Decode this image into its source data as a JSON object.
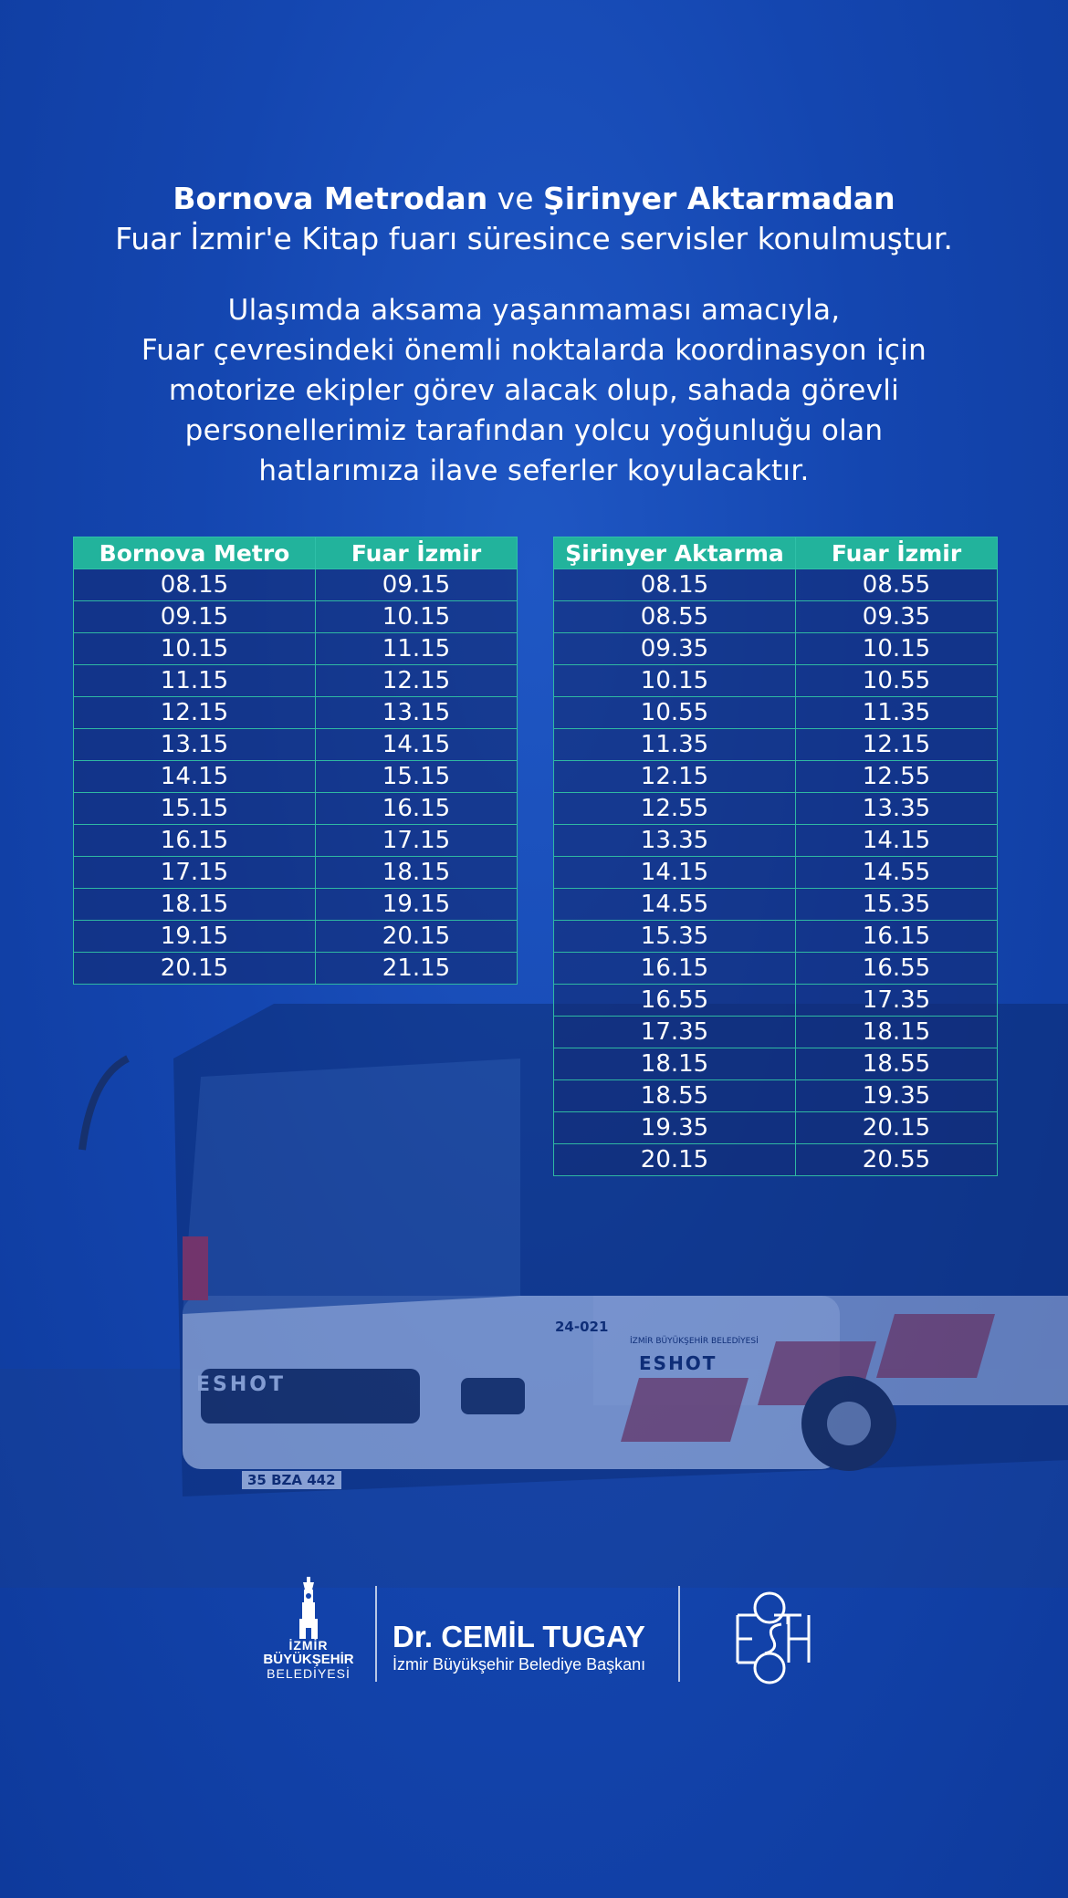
{
  "intro": {
    "line1_bold_a": "Bornova Metrodan",
    "line1_mid": " ve ",
    "line1_bold_b": "Şirinyer Aktarmadan",
    "line2": "Fuar İzmir'e Kitap fuarı süresince servisler konulmuştur.",
    "paragraph": [
      "Ulaşımda aksama yaşanmaması amacıyla,",
      "Fuar çevresindeki önemli noktalarda koordinasyon için",
      "motorize ekipler görev alacak olup, sahada görevli",
      "personellerimiz tarafından yolcu yoğunluğu olan",
      "hatlarımıza ilave seferler koyulacaktır."
    ]
  },
  "tables": {
    "bornova": {
      "headers": [
        "Bornova Metro",
        "Fuar İzmir"
      ],
      "rows": [
        [
          "08.15",
          "09.15"
        ],
        [
          "09.15",
          "10.15"
        ],
        [
          "10.15",
          "11.15"
        ],
        [
          "11.15",
          "12.15"
        ],
        [
          "12.15",
          "13.15"
        ],
        [
          "13.15",
          "14.15"
        ],
        [
          "14.15",
          "15.15"
        ],
        [
          "15.15",
          "16.15"
        ],
        [
          "16.15",
          "17.15"
        ],
        [
          "17.15",
          "18.15"
        ],
        [
          "18.15",
          "19.15"
        ],
        [
          "19.15",
          "20.15"
        ],
        [
          "20.15",
          "21.15"
        ]
      ]
    },
    "sirinyer": {
      "headers": [
        "Şirinyer Aktarma",
        "Fuar İzmir"
      ],
      "rows": [
        [
          "08.15",
          "08.55"
        ],
        [
          "08.55",
          "09.35"
        ],
        [
          "09.35",
          "10.15"
        ],
        [
          "10.15",
          "10.55"
        ],
        [
          "10.55",
          "11.35"
        ],
        [
          "11.35",
          "12.15"
        ],
        [
          "12.15",
          "12.55"
        ],
        [
          "12.55",
          "13.35"
        ],
        [
          "13.35",
          "14.15"
        ],
        [
          "14.15",
          "14.55"
        ],
        [
          "14.55",
          "15.35"
        ],
        [
          "15.35",
          "16.15"
        ],
        [
          "16.15",
          "16.55"
        ],
        [
          "16.55",
          "17.35"
        ],
        [
          "17.35",
          "18.15"
        ],
        [
          "18.15",
          "18.55"
        ],
        [
          "18.55",
          "19.35"
        ],
        [
          "19.35",
          "20.15"
        ],
        [
          "20.15",
          "20.55"
        ]
      ]
    }
  },
  "bus": {
    "fleet_number": "24-021",
    "front_label": "ESHOT",
    "side_label_small": "İZMİR BÜYÜKŞEHİR BELEDİYESİ",
    "side_label": "ESHOT",
    "plate": "35 BZA 442"
  },
  "footer": {
    "logo_line1": "İZMİR",
    "logo_line2": "BÜYÜKŞEHİR",
    "logo_line3": "BELEDİYESİ",
    "mayor_name": "Dr. CEMİL TUGAY",
    "mayor_title": "İzmir Büyükşehir Belediye Başkanı"
  },
  "colors": {
    "background": "#1446b0",
    "table_header": "#22b39c",
    "table_border": "#2fb8a2",
    "table_cell": "#12307a"
  }
}
